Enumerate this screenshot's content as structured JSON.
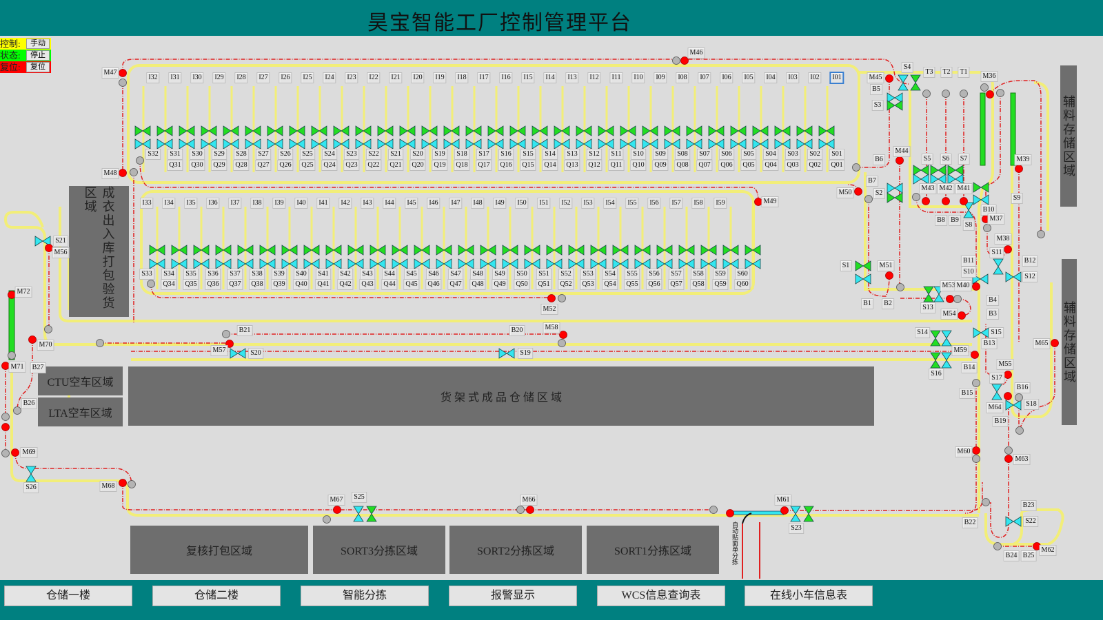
{
  "header": {
    "title": "昊宝智能工厂控制管理平台"
  },
  "legend": [
    {
      "label": "控制:",
      "value": "手动",
      "color": "#ffff00"
    },
    {
      "label": "状态:",
      "value": "停止",
      "color": "#00ff00"
    },
    {
      "label": "复位:",
      "value": "复位",
      "color": "#ff0000"
    }
  ],
  "zones": {
    "packing_inspection": "成衣出入库打包验货区域",
    "ctu_empty": "CTU空车区域",
    "lta_empty": "LTA空车区域",
    "rack_storage": "货 架 式 成 品 仓 储 区 域",
    "recheck_packing": "复核打包区域",
    "sort3": "SORT3分拣区域",
    "sort2": "SORT2分拣区域",
    "sort1": "SORT1分拣区域",
    "aux_storage_1": "辅料存储区域",
    "aux_storage_2": "辅料存储区域",
    "auto_label_sort": "自动贴面单分拣"
  },
  "row1": {
    "I": [
      "I32",
      "I31",
      "I30",
      "I29",
      "I28",
      "I27",
      "I26",
      "I25",
      "I24",
      "I23",
      "I22",
      "I21",
      "I20",
      "I19",
      "I18",
      "I17",
      "I16",
      "I15",
      "I14",
      "I13",
      "I12",
      "I11",
      "I10",
      "I09",
      "I08",
      "I07",
      "I06",
      "I05",
      "I04",
      "I03",
      "I02",
      "I01"
    ],
    "S": [
      "S32",
      "S31",
      "S30",
      "S29",
      "S28",
      "S27",
      "S26",
      "S25",
      "S24",
      "S23",
      "S22",
      "S21",
      "S20",
      "S19",
      "S18",
      "S17",
      "S16",
      "S15",
      "S14",
      "S13",
      "S12",
      "S11",
      "S10",
      "S09",
      "S08",
      "S07",
      "S06",
      "S05",
      "S04",
      "S03",
      "S02",
      "S01"
    ],
    "Q": [
      "Q31",
      "Q30",
      "Q29",
      "Q28",
      "Q27",
      "Q26",
      "Q25",
      "Q24",
      "Q23",
      "Q22",
      "Q21",
      "Q20",
      "Q19",
      "Q18",
      "Q17",
      "Q16",
      "Q15",
      "Q14",
      "Q13",
      "Q12",
      "Q11",
      "Q10",
      "Q09",
      "Q08",
      "Q07",
      "Q06",
      "Q05",
      "Q04",
      "Q03",
      "Q02",
      "Q01"
    ],
    "selected": "I01"
  },
  "row2": {
    "I": [
      "I33",
      "I34",
      "I35",
      "I36",
      "I37",
      "I38",
      "I39",
      "I40",
      "I41",
      "I42",
      "I43",
      "I44",
      "I45",
      "I46",
      "I47",
      "I48",
      "I49",
      "I50",
      "I51",
      "I52",
      "I53",
      "I54",
      "I55",
      "I56",
      "I57",
      "I58",
      "I59"
    ],
    "S": [
      "S33",
      "S34",
      "S35",
      "S36",
      "S37",
      "S38",
      "S39",
      "S40",
      "S41",
      "S42",
      "S43",
      "S44",
      "S45",
      "S46",
      "S47",
      "S48",
      "S49",
      "S50",
      "S51",
      "S52",
      "S53",
      "S54",
      "S55",
      "S56",
      "S57",
      "S58",
      "S59",
      "S60"
    ],
    "Q": [
      "Q34",
      "Q35",
      "Q36",
      "Q37",
      "Q38",
      "Q39",
      "Q40",
      "Q41",
      "Q42",
      "Q43",
      "Q44",
      "Q45",
      "Q46",
      "Q47",
      "Q48",
      "Q49",
      "Q50",
      "Q51",
      "Q52",
      "Q53",
      "Q54",
      "Q55",
      "Q56",
      "Q57",
      "Q58",
      "Q59",
      "Q60"
    ]
  },
  "tags": [
    "M46",
    "M47",
    "M48",
    "M45",
    "B5",
    "S3",
    "S4",
    "T3",
    "T2",
    "T1",
    "M36",
    "B6",
    "M44",
    "S5",
    "S6",
    "S7",
    "M39",
    "B7",
    "M50",
    "S2",
    "M43",
    "M42",
    "M41",
    "S9",
    "B10",
    "B8",
    "B9",
    "S8",
    "M37",
    "M38",
    "S11",
    "B11",
    "B12",
    "S1",
    "M51",
    "S10",
    "S12",
    "M53",
    "M40",
    "B1",
    "B2",
    "B4",
    "S13",
    "M54",
    "B3",
    "S14",
    "S15",
    "B13",
    "M59",
    "M65",
    "B14",
    "S16",
    "M55",
    "S17",
    "B16",
    "B15",
    "S18",
    "M64",
    "B19",
    "M60",
    "M63",
    "B23",
    "S22",
    "B22",
    "B24",
    "B25",
    "M62",
    "M61",
    "S23",
    "M66",
    "M67",
    "S25",
    "M68",
    "S26",
    "M69",
    "B26",
    "B27",
    "M71",
    "M70",
    "M72",
    "M56",
    "S21",
    "M57",
    "S20",
    "B21",
    "B20",
    "M58",
    "S19",
    "M49",
    "M52"
  ],
  "colors": {
    "header": "#008080",
    "conveyor": "#f2ee78",
    "path": "#e02020",
    "valve_green": "#22dd22",
    "valve_cyan": "#33e6f0",
    "motor_on": "#ff0000",
    "sensor_idle": "#b4b4b4",
    "zone": "#6e6e6e"
  },
  "footer": {
    "buttons": [
      "仓储一楼",
      "仓储二楼",
      "智能分拣",
      "报警显示",
      "WCS信息查询表",
      "在线小车信息表"
    ]
  }
}
